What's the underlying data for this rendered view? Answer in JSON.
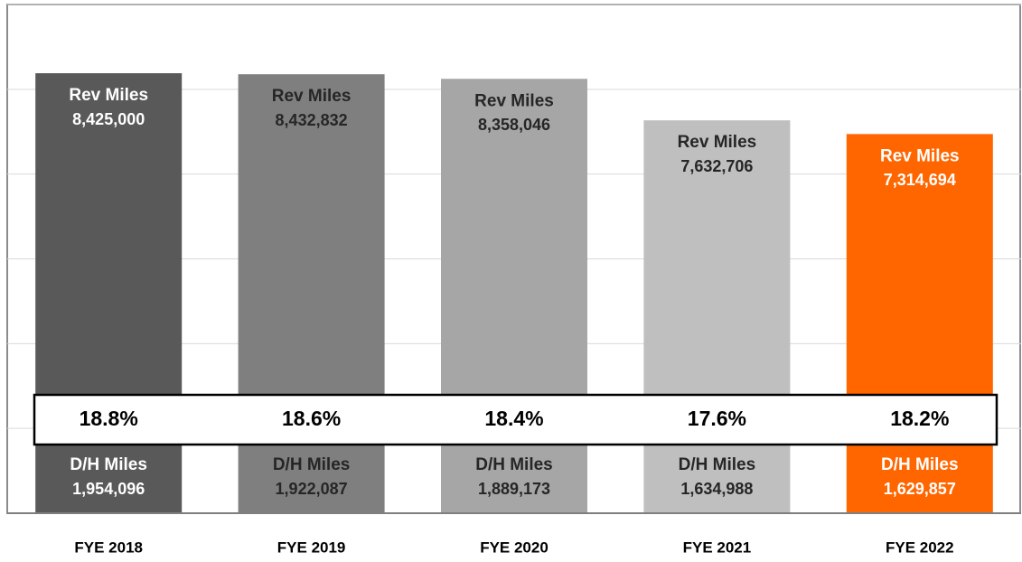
{
  "chart_data": {
    "type": "bar",
    "stacked": true,
    "categories": [
      "FYE 2018",
      "FYE 2019",
      "FYE 2020",
      "FYE 2021",
      "FYE 2022"
    ],
    "colors": [
      "#595959",
      "#7f7f7f",
      "#a6a6a6",
      "#bfbfbf",
      "#ff6600"
    ],
    "label_colors": [
      "#ffffff",
      "#262626",
      "#262626",
      "#262626",
      "#ffffff"
    ],
    "series": [
      {
        "name": "D/H Miles",
        "values": [
          1954096,
          1922087,
          1889173,
          1634988,
          1629857
        ],
        "value_labels": [
          "1,954,096",
          "1,922,087",
          "1,889,173",
          "1,634,988",
          "1,629,857"
        ]
      },
      {
        "name": "Rev Miles",
        "values": [
          8425000,
          8432832,
          8358046,
          7632706,
          7314694
        ],
        "value_labels": [
          "8,425,000",
          "8,432,832",
          "8,358,046",
          "7,632,706",
          "7,314,694"
        ]
      }
    ],
    "percentages": {
      "values": [
        18.8,
        18.6,
        18.4,
        17.6,
        18.2
      ],
      "value_labels": [
        "18.8%",
        "18.6%",
        "18.4%",
        "17.6%",
        "18.2%"
      ]
    },
    "ylim": [
      0,
      12000000
    ],
    "yticks": [
      0,
      2000000,
      4000000,
      6000000,
      8000000,
      10000000,
      12000000
    ],
    "grid": true
  }
}
